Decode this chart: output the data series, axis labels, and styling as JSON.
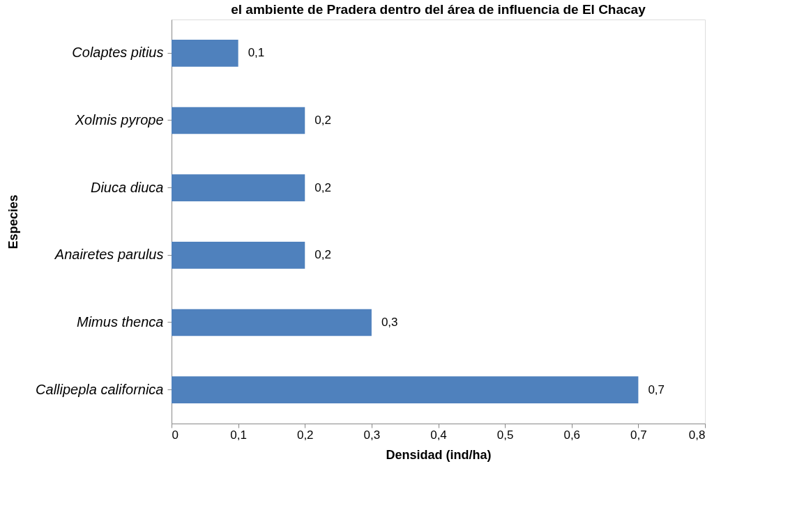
{
  "chart_data": {
    "type": "bar",
    "orientation": "horizontal",
    "title": "el ambiente de Pradera dentro del área de influencia de El Chacay",
    "xlabel": "Densidad (ind/ha)",
    "ylabel": "Especies",
    "categories": [
      "Colaptes pitius",
      "Xolmis pyrope",
      "Diuca diuca",
      "Anairetes parulus",
      "Mimus thenca",
      "Callipepla californica"
    ],
    "values": [
      0.1,
      0.2,
      0.2,
      0.2,
      0.3,
      0.7
    ],
    "value_labels": [
      "0,1",
      "0,2",
      "0,2",
      "0,2",
      "0,3",
      "0,7"
    ],
    "color": "#4f81bd",
    "xlim": [
      0,
      0.8
    ],
    "xticks": [
      0,
      {
        "value": 0.1,
        "label": "0,1"
      },
      {
        "value": 0.2,
        "label": "0,2"
      },
      {
        "value": 0.3,
        "label": "0,3"
      },
      {
        "value": 0.4,
        "label": "0,4"
      },
      {
        "value": 0.5,
        "label": "0,5"
      },
      {
        "value": 0.6,
        "label": "0,6"
      },
      {
        "value": 0.7,
        "label": "0,7"
      },
      {
        "value": 0.8,
        "label": "0,8"
      }
    ],
    "grid": false
  }
}
